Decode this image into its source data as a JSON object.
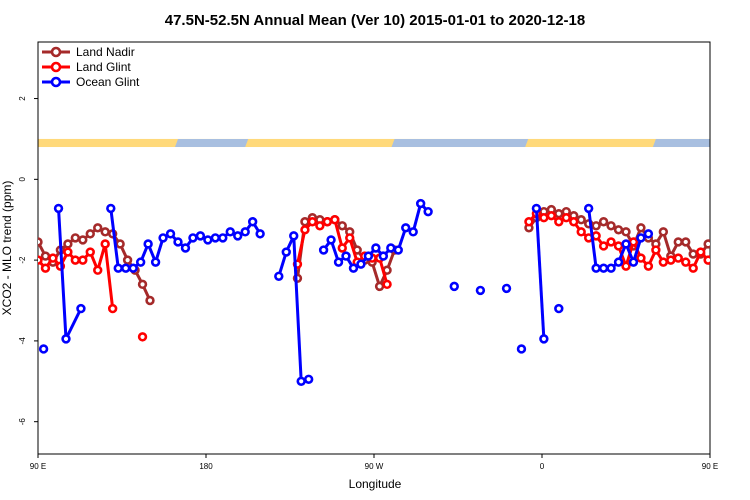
{
  "chart_data": {
    "type": "line",
    "title": "47.5N-52.5N Annual Mean (Ver 10)   2015-01-01 to 2020-12-18",
    "xlabel": "Longitude",
    "ylabel": "XCO2 - MLO trend (ppm)",
    "xlim": [
      90,
      450
    ],
    "ylim": [
      -6.8,
      3.4
    ],
    "x_ticks": [
      {
        "value": 90,
        "label": "90 E"
      },
      {
        "value": 180,
        "label": "180"
      },
      {
        "value": 270,
        "label": "90 W"
      },
      {
        "value": 360,
        "label": "0"
      },
      {
        "value": 450,
        "label": "90 E"
      },
      {
        "value": 540,
        "label": "180"
      }
    ],
    "y_ticks": [
      {
        "value": 2,
        "label": "2"
      },
      {
        "value": 0,
        "label": "0"
      },
      {
        "value": -2,
        "label": "-2"
      },
      {
        "value": -4,
        "label": "-4"
      },
      {
        "value": -6,
        "label": "-6"
      }
    ],
    "legend_position": "top-left",
    "land_band": {
      "y_top": 1.0,
      "y_bottom": 0.8,
      "land_color": "#ffd97a",
      "ocean_color": "#a8bfe0"
    },
    "series": [
      {
        "name": "Land Nadir",
        "color": "#a52a2a",
        "segments": [
          [
            [
              90,
              -1.55
            ],
            [
              94,
              -1.9
            ],
            [
              98,
              -2.05
            ],
            [
              102,
              -1.75
            ],
            [
              106,
              -1.6
            ],
            [
              110,
              -1.45
            ],
            [
              114,
              -1.5
            ],
            [
              118,
              -1.35
            ],
            [
              122,
              -1.2
            ],
            [
              126,
              -1.3
            ],
            [
              130,
              -1.35
            ],
            [
              134,
              -1.6
            ],
            [
              138,
              -2.0
            ],
            [
              142,
              -2.25
            ],
            [
              146,
              -2.6
            ],
            [
              150,
              -3.0
            ]
          ],
          [
            [
              229,
              -2.45
            ],
            [
              233,
              -1.05
            ],
            [
              237,
              -0.95
            ],
            [
              241,
              -1.0
            ],
            [
              245,
              -1.05
            ],
            [
              249,
              -1.0
            ],
            [
              253,
              -1.15
            ],
            [
              257,
              -1.3
            ],
            [
              261,
              -1.75
            ],
            [
              265,
              -2.0
            ],
            [
              269,
              -2.05
            ],
            [
              273,
              -2.65
            ],
            [
              277,
              -2.25
            ],
            [
              281,
              -1.75
            ]
          ],
          [
            [
              353,
              -1.2
            ],
            [
              357,
              -0.95
            ],
            [
              361,
              -0.8
            ],
            [
              365,
              -0.75
            ],
            [
              369,
              -0.85
            ],
            [
              373,
              -0.8
            ],
            [
              377,
              -0.9
            ],
            [
              381,
              -1.0
            ],
            [
              385,
              -1.1
            ],
            [
              389,
              -1.15
            ],
            [
              393,
              -1.05
            ],
            [
              397,
              -1.15
            ],
            [
              401,
              -1.25
            ],
            [
              405,
              -1.3
            ],
            [
              409,
              -1.65
            ],
            [
              413,
              -1.2
            ],
            [
              417,
              -1.45
            ],
            [
              421,
              -1.6
            ],
            [
              425,
              -1.3
            ],
            [
              429,
              -1.9
            ],
            [
              433,
              -1.55
            ],
            [
              437,
              -1.55
            ],
            [
              441,
              -1.85
            ],
            [
              445,
              -1.85
            ],
            [
              449,
              -1.6
            ],
            [
              453,
              -1.45
            ],
            [
              457,
              -1.5
            ],
            [
              461,
              -1.4
            ],
            [
              465,
              -1.2
            ],
            [
              469,
              -1.3
            ],
            [
              473,
              -1.4
            ],
            [
              477,
              -1.75
            ],
            [
              481,
              -2.1
            ]
          ],
          [
            [
              490,
              -3.0
            ]
          ]
        ]
      },
      {
        "name": "Land Glint",
        "color": "#ff0000",
        "segments": [
          [
            [
              90,
              -2.0
            ],
            [
              94,
              -2.2
            ],
            [
              98,
              -1.95
            ],
            [
              102,
              -2.15
            ],
            [
              106,
              -1.8
            ],
            [
              110,
              -2.0
            ],
            [
              114,
              -2.0
            ],
            [
              118,
              -1.8
            ],
            [
              122,
              -2.25
            ],
            [
              126,
              -1.6
            ],
            [
              130,
              -3.2
            ]
          ],
          [
            [
              146,
              -3.9
            ]
          ],
          [
            [
              229,
              -2.1
            ],
            [
              233,
              -1.25
            ],
            [
              237,
              -1.05
            ],
            [
              241,
              -1.15
            ],
            [
              245,
              -1.05
            ],
            [
              249,
              -1.0
            ],
            [
              253,
              -1.7
            ],
            [
              257,
              -1.45
            ],
            [
              261,
              -2.05
            ],
            [
              265,
              -1.9
            ],
            [
              269,
              -1.95
            ],
            [
              273,
              -1.95
            ],
            [
              277,
              -2.6
            ]
          ],
          [
            [
              353,
              -1.05
            ],
            [
              357,
              -0.85
            ],
            [
              361,
              -0.95
            ],
            [
              365,
              -0.9
            ],
            [
              369,
              -1.05
            ],
            [
              373,
              -0.95
            ],
            [
              377,
              -1.05
            ],
            [
              381,
              -1.3
            ],
            [
              385,
              -1.45
            ],
            [
              389,
              -1.4
            ],
            [
              393,
              -1.65
            ],
            [
              397,
              -1.55
            ],
            [
              401,
              -1.65
            ],
            [
              405,
              -2.15
            ],
            [
              409,
              -1.55
            ],
            [
              413,
              -1.95
            ],
            [
              417,
              -2.15
            ],
            [
              421,
              -1.75
            ],
            [
              425,
              -2.05
            ],
            [
              429,
              -2.0
            ],
            [
              433,
              -1.95
            ],
            [
              437,
              -2.05
            ],
            [
              441,
              -2.2
            ],
            [
              445,
              -1.8
            ],
            [
              449,
              -2.0
            ],
            [
              453,
              -2.0
            ],
            [
              457,
              -1.8
            ],
            [
              461,
              -2.3
            ],
            [
              465,
              -1.7
            ],
            [
              469,
              -3.2
            ]
          ],
          [
            [
              481,
              -3.9
            ]
          ]
        ]
      },
      {
        "name": "Ocean Glint",
        "color": "#0000ff",
        "segments": [
          [
            [
              93,
              -4.2
            ]
          ],
          [
            [
              101,
              -0.72
            ],
            [
              105,
              -3.95
            ],
            [
              113,
              -3.2
            ]
          ],
          [
            [
              129,
              -0.72
            ],
            [
              133,
              -2.2
            ],
            [
              137,
              -2.2
            ],
            [
              141,
              -2.2
            ],
            [
              145,
              -2.05
            ],
            [
              149,
              -1.6
            ],
            [
              153,
              -2.05
            ],
            [
              157,
              -1.45
            ],
            [
              161,
              -1.35
            ],
            [
              165,
              -1.55
            ],
            [
              169,
              -1.7
            ],
            [
              173,
              -1.45
            ],
            [
              177,
              -1.4
            ],
            [
              181,
              -1.5
            ],
            [
              185,
              -1.45
            ],
            [
              189,
              -1.45
            ],
            [
              193,
              -1.3
            ],
            [
              197,
              -1.4
            ],
            [
              201,
              -1.3
            ],
            [
              205,
              -1.05
            ],
            [
              209,
              -1.35
            ]
          ],
          [
            [
              219,
              -2.4
            ],
            [
              223,
              -1.8
            ],
            [
              227,
              -1.4
            ],
            [
              231,
              -5.0
            ],
            [
              235,
              -4.95
            ]
          ],
          [
            [
              243,
              -1.75
            ],
            [
              247,
              -1.5
            ],
            [
              251,
              -2.05
            ],
            [
              255,
              -1.9
            ],
            [
              259,
              -2.2
            ],
            [
              263,
              -2.1
            ],
            [
              267,
              -1.9
            ],
            [
              271,
              -1.7
            ],
            [
              275,
              -1.9
            ],
            [
              279,
              -1.7
            ],
            [
              283,
              -1.75
            ],
            [
              287,
              -1.2
            ],
            [
              291,
              -1.3
            ],
            [
              295,
              -0.6
            ],
            [
              299,
              -0.8
            ]
          ],
          [
            [
              313,
              -2.65
            ]
          ],
          [
            [
              327,
              -2.75
            ]
          ],
          [
            [
              341,
              -2.7
            ]
          ],
          [
            [
              349,
              -4.2
            ]
          ],
          [
            [
              357,
              -0.72
            ],
            [
              361,
              -3.95
            ]
          ],
          [
            [
              369,
              -3.2
            ]
          ],
          [
            [
              385,
              -0.72
            ],
            [
              389,
              -2.2
            ],
            [
              393,
              -2.2
            ],
            [
              397,
              -2.2
            ],
            [
              401,
              -2.05
            ],
            [
              405,
              -1.6
            ],
            [
              409,
              -2.05
            ],
            [
              413,
              -1.45
            ],
            [
              417,
              -1.35
            ]
          ]
        ]
      }
    ]
  }
}
